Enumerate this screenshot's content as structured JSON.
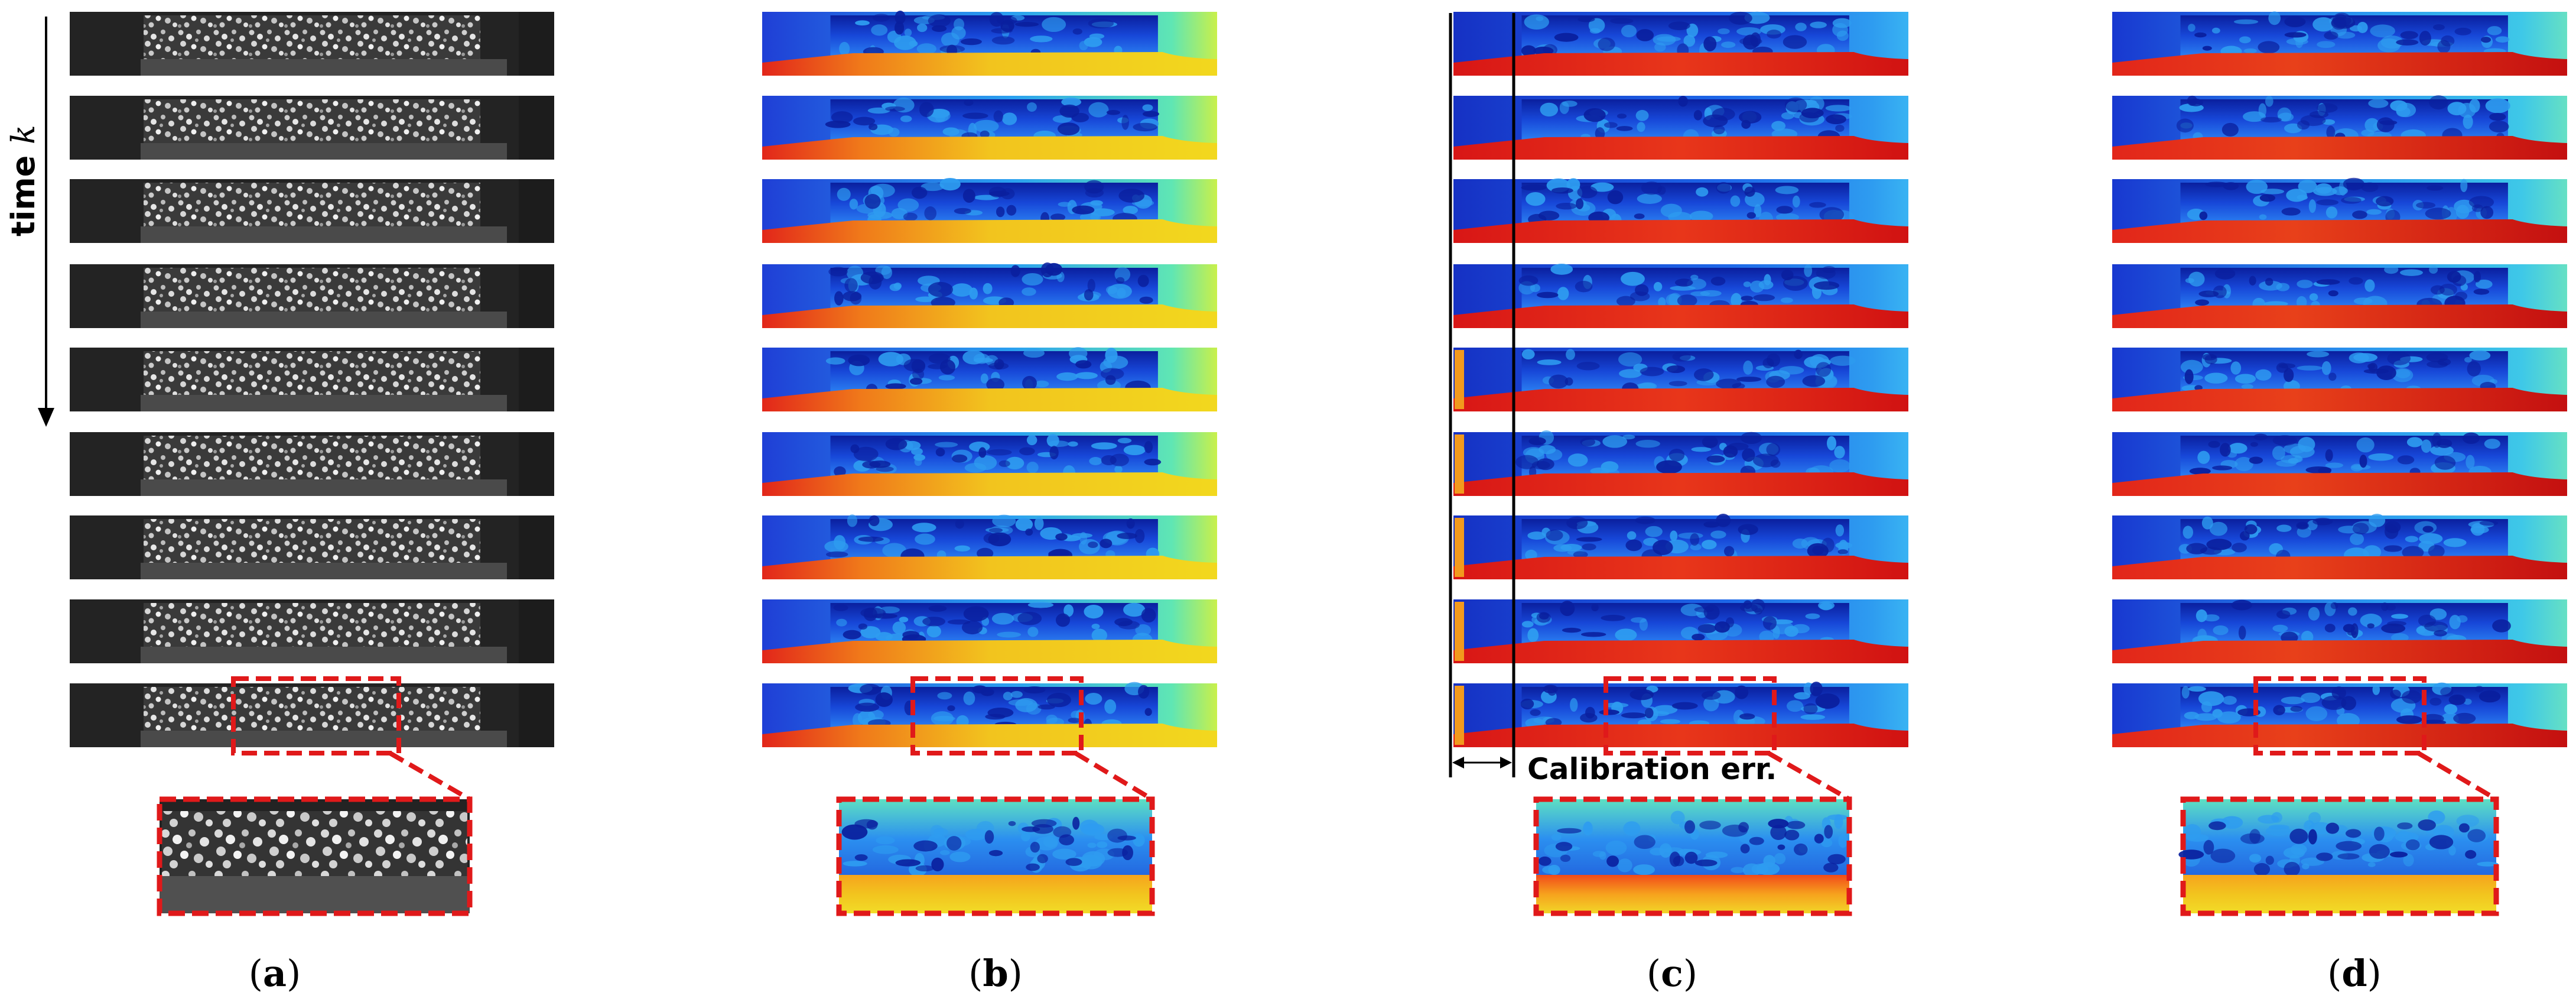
{
  "figure": {
    "time_axis": {
      "text": "time ",
      "variable": "k"
    },
    "panels": [
      {
        "id": "a",
        "label": "a",
        "kind": "grayscale-frames",
        "frames": 9
      },
      {
        "id": "b",
        "label": "b",
        "kind": "depth-colormap",
        "frames": 9
      },
      {
        "id": "c",
        "label": "c",
        "kind": "depth-colormap",
        "frames": 9,
        "annotation": "Calibration err."
      },
      {
        "id": "d",
        "label": "d",
        "kind": "depth-colormap",
        "frames": 9
      }
    ],
    "colors": {
      "highlight": "#e0191a",
      "frame_dark": "#232323",
      "frame_mid": "#4a4a4a",
      "depth_far": "#0a1f9e",
      "depth_mid": "#2e9cf0",
      "depth_near": "#f2d81e",
      "depth_front": "#e2261a"
    }
  }
}
